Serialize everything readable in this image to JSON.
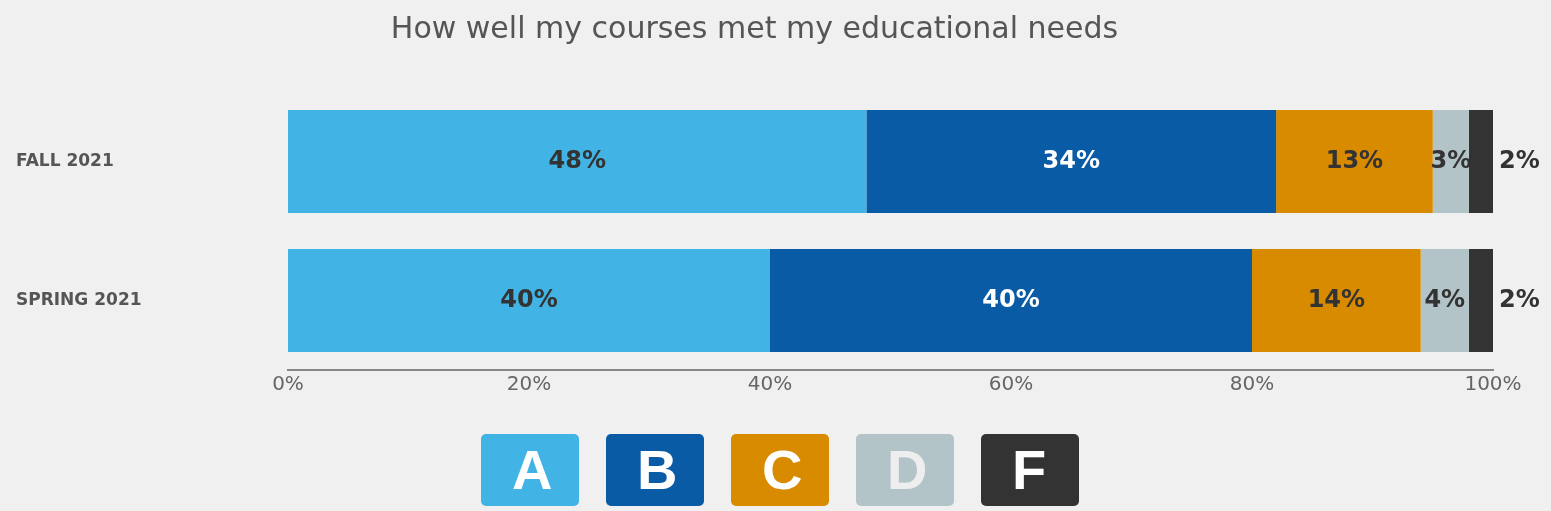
{
  "chart_data": {
    "type": "bar",
    "orientation": "horizontal",
    "stacked": true,
    "title": "How well my courses met my educational needs",
    "categories": [
      "FALL 2021",
      "SPRING 2021"
    ],
    "series": [
      {
        "name": "A",
        "color": "#41b3e4",
        "values": [
          48,
          40
        ],
        "value_labels": [
          "48%",
          "40%"
        ]
      },
      {
        "name": "B",
        "color": "#0a5ba6",
        "values": [
          34,
          40
        ],
        "value_labels": [
          "34%",
          "40%"
        ]
      },
      {
        "name": "C",
        "color": "#d98b00",
        "values": [
          13,
          14
        ],
        "value_labels": [
          "13%",
          "14%"
        ]
      },
      {
        "name": "D",
        "color": "#b2c4c8",
        "values": [
          3,
          4
        ],
        "value_labels": [
          "3%",
          "4%"
        ]
      },
      {
        "name": "F",
        "color": "#333333",
        "values": [
          2,
          2
        ],
        "value_labels": [
          "2%",
          "2%"
        ]
      }
    ],
    "xlim": [
      0,
      100
    ],
    "xticks": [
      {
        "value": 0,
        "label": "0%"
      },
      {
        "value": 20,
        "label": "20%"
      },
      {
        "value": 40,
        "label": "40%"
      },
      {
        "value": 60,
        "label": "60%"
      },
      {
        "value": 80,
        "label": "80%"
      },
      {
        "value": 100,
        "label": "100%"
      }
    ],
    "grid": false,
    "legend": "bottom"
  }
}
